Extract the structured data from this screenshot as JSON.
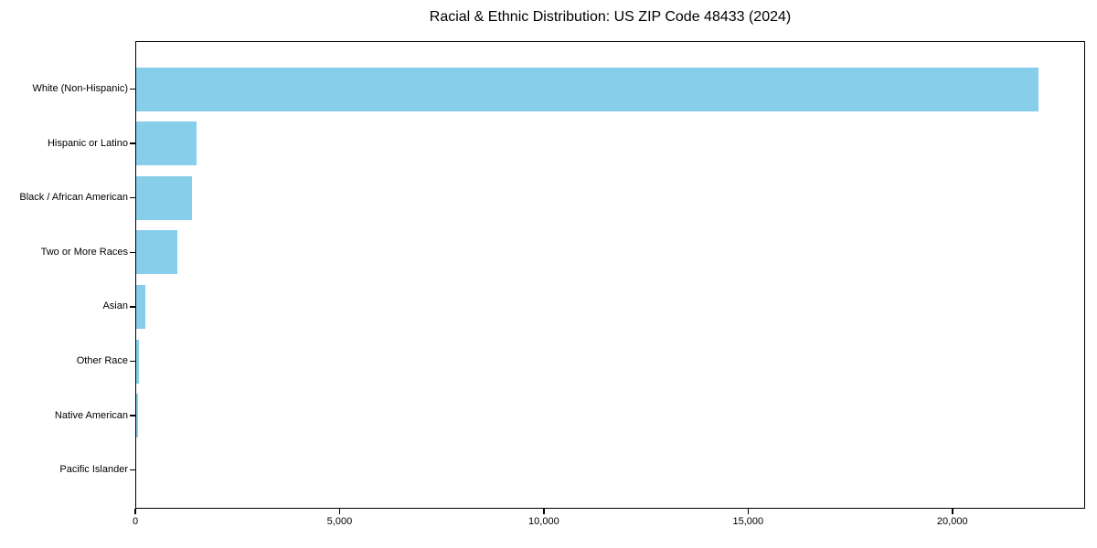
{
  "chart_data": {
    "type": "bar",
    "orientation": "horizontal",
    "title": "Racial & Ethnic Distribution: US ZIP Code 48433 (2024)",
    "categories": [
      "White (Non-Hispanic)",
      "Hispanic or Latino",
      "Black / African American",
      "Two or More Races",
      "Asian",
      "Other Race",
      "Native American",
      "Pacific Islander"
    ],
    "values": [
      22100,
      1490,
      1380,
      1020,
      240,
      100,
      60,
      0
    ],
    "xlabel": "",
    "ylabel": "",
    "xlim": [
      0,
      23250
    ],
    "xticks": [
      0,
      5000,
      10000,
      15000,
      20000
    ],
    "xtick_labels": [
      "0",
      "5,000",
      "10,000",
      "15,000",
      "20,000"
    ],
    "bar_color": "#87CEEB",
    "text_color": "#000000",
    "grid": false,
    "legend": "none"
  }
}
